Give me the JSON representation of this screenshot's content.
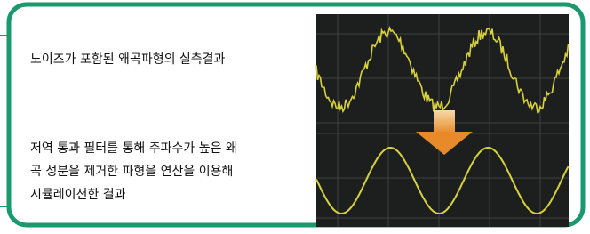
{
  "descriptions": {
    "noisy": "노이즈가 포함된 왜곡파형의 실측결과",
    "filtered": [
      "저역 통과 필터를 통해 주파수가 높은 왜",
      "곡 성분을 제거한 파형을 연산을 이용해",
      "시뮬레이션한 결과"
    ]
  }
}
